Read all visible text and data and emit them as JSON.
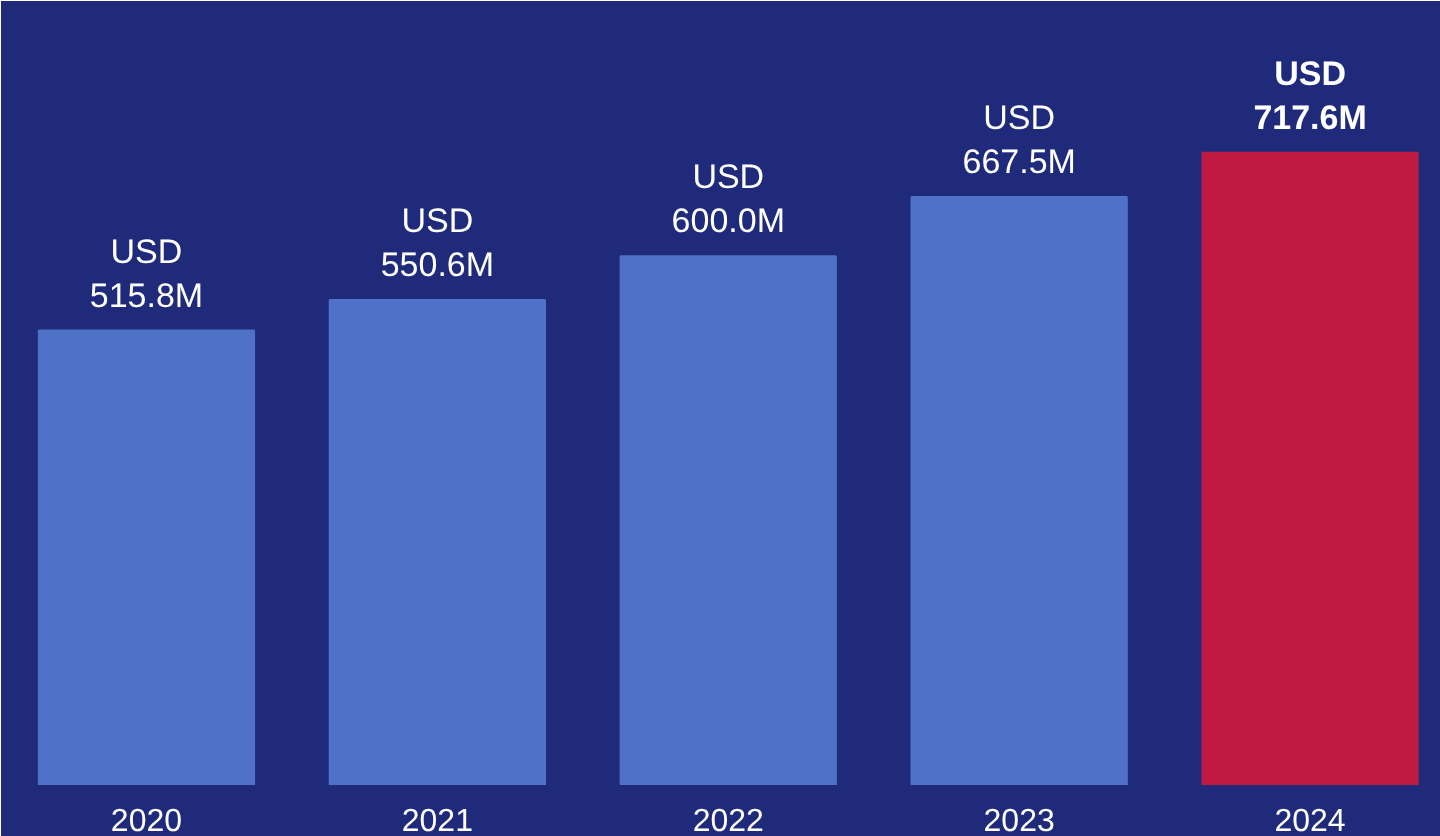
{
  "chart_data": {
    "type": "bar",
    "categories": [
      "2020",
      "2021",
      "2022",
      "2023",
      "2024"
    ],
    "values": [
      515800000,
      550600000,
      600000000,
      667500000,
      717600000
    ],
    "colors": [
      "#4f72c8",
      "#4f72c8",
      "#4f72c8",
      "#4f72c8",
      "#be1a42"
    ],
    "value_labels": [
      "USD\n515.8M",
      "USD\n550.6M",
      "USD\n600.0M",
      "USD\n667.5M",
      "USD\n717.6M"
    ],
    "grid": false
  }
}
